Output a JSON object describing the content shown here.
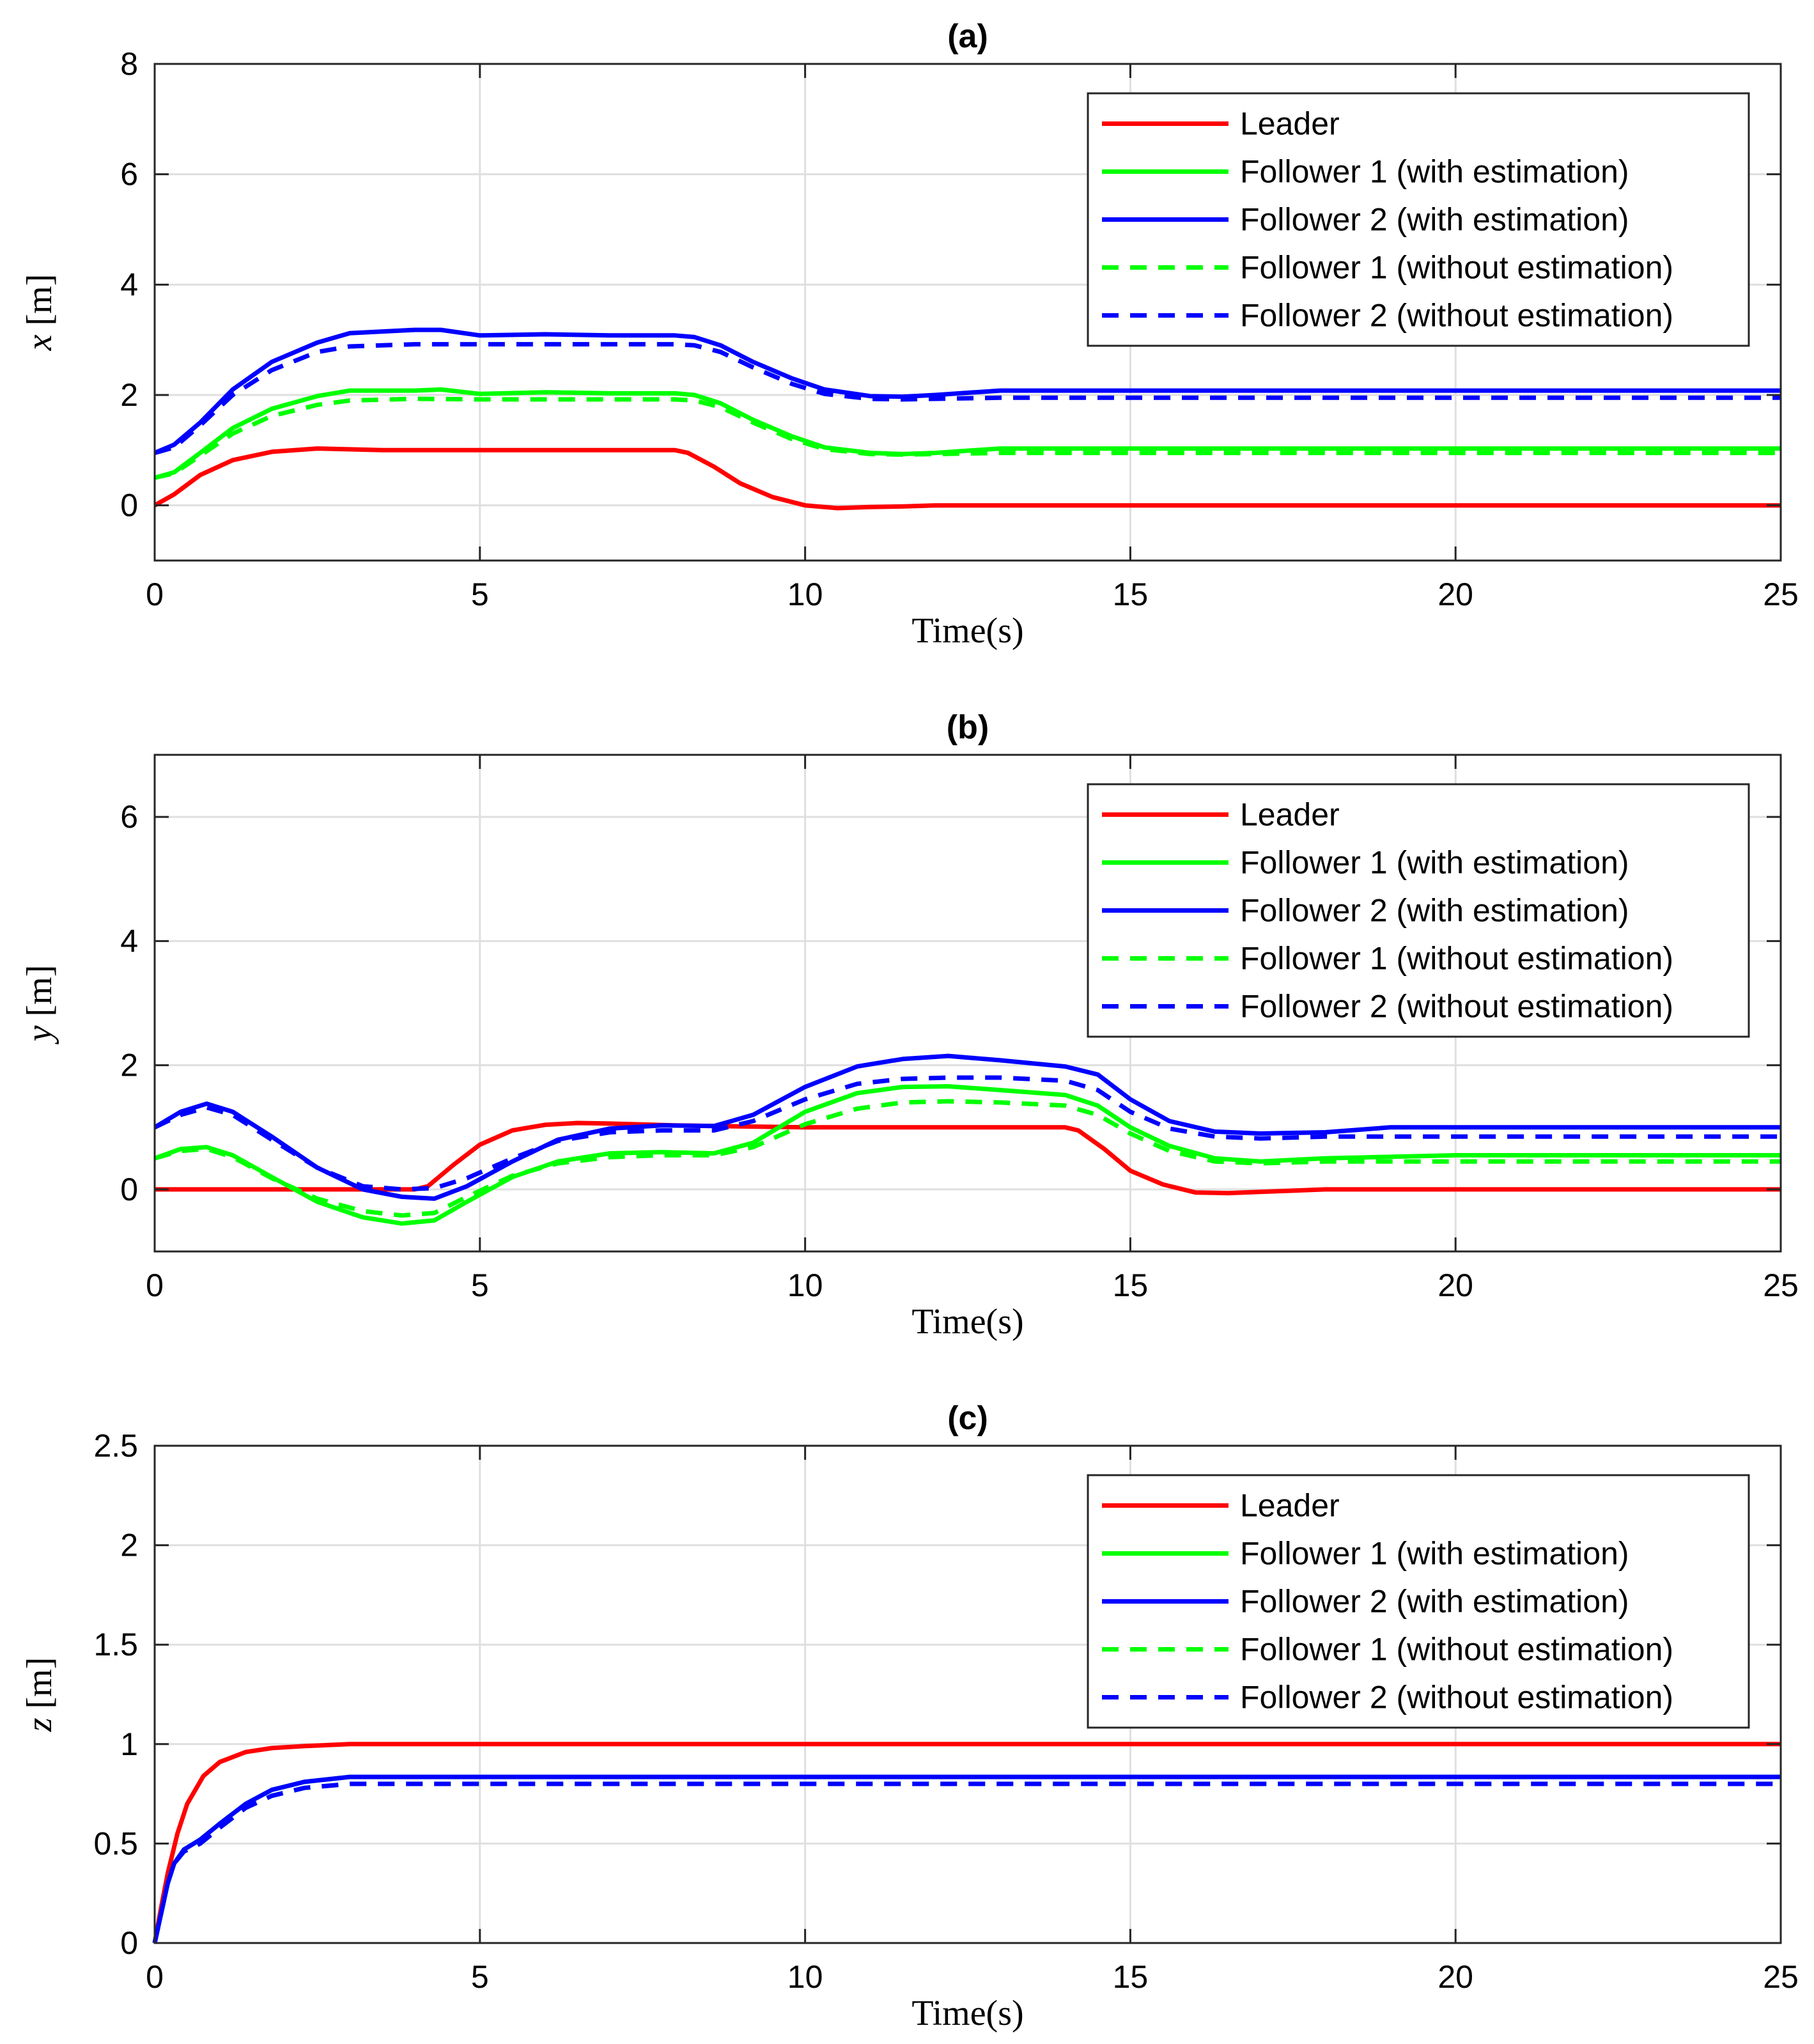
{
  "figure": {
    "xlabel": "Time(s)",
    "legend": {
      "placement": "top-right",
      "entries": [
        {
          "name": "Leader",
          "color": "#ff0000",
          "style": "solid"
        },
        {
          "name": "Follower 1 (with estimation)",
          "color": "#00ff00",
          "style": "solid"
        },
        {
          "name": "Follower 2 (with estimation)",
          "color": "#0000ff",
          "style": "solid"
        },
        {
          "name": "Follower 1 (without estimation)",
          "color": "#00ff00",
          "style": "dashed"
        },
        {
          "name": "Follower 2 (without estimation)",
          "color": "#0000ff",
          "style": "dashed"
        }
      ]
    }
  },
  "chart_data": [
    {
      "type": "line",
      "title": "(a)",
      "ylabel_var": "x",
      "ylabel_unit": "[m]",
      "xlabel": "Time(s)",
      "xlim": [
        0,
        25
      ],
      "ylim": [
        -1,
        8
      ],
      "xticks": [
        0,
        5,
        10,
        15,
        20,
        25
      ],
      "yticks": [
        0,
        2,
        4,
        6,
        8
      ],
      "grid": true,
      "series": [
        {
          "name": "Leader",
          "color": "#ff0000",
          "style": "solid",
          "x": [
            0,
            0.3,
            0.7,
            1.2,
            1.8,
            2.5,
            3.5,
            5,
            7,
            8,
            8.2,
            8.6,
            9,
            9.5,
            10,
            10.5,
            11,
            11.5,
            12,
            13,
            15,
            20,
            25
          ],
          "y": [
            0,
            0.2,
            0.55,
            0.82,
            0.97,
            1.03,
            1.0,
            1.0,
            1.0,
            1.0,
            0.95,
            0.7,
            0.4,
            0.15,
            0.0,
            -0.05,
            -0.03,
            -0.02,
            0.0,
            0.0,
            0.0,
            0.0,
            0.0
          ]
        },
        {
          "name": "Follower 1 (with estimation)",
          "color": "#00ff00",
          "style": "solid",
          "x": [
            0,
            0.3,
            0.7,
            1.2,
            1.8,
            2.5,
            3,
            4,
            4.4,
            5,
            6,
            7,
            8,
            8.3,
            8.7,
            9.2,
            9.8,
            10.3,
            11,
            11.5,
            12,
            13,
            15,
            20,
            25
          ],
          "y": [
            0.5,
            0.6,
            0.95,
            1.4,
            1.75,
            1.98,
            2.08,
            2.08,
            2.1,
            2.02,
            2.05,
            2.03,
            2.03,
            2.0,
            1.85,
            1.55,
            1.25,
            1.05,
            0.95,
            0.93,
            0.95,
            1.03,
            1.03,
            1.03,
            1.03
          ]
        },
        {
          "name": "Follower 2 (with estimation)",
          "color": "#0000ff",
          "style": "solid",
          "x": [
            0,
            0.3,
            0.7,
            1.2,
            1.8,
            2.5,
            3,
            4,
            4.4,
            5,
            6,
            7,
            8,
            8.3,
            8.7,
            9.2,
            9.8,
            10.3,
            11,
            11.5,
            12,
            13,
            15,
            20,
            25
          ],
          "y": [
            0.95,
            1.1,
            1.5,
            2.1,
            2.6,
            2.95,
            3.12,
            3.18,
            3.18,
            3.08,
            3.1,
            3.08,
            3.08,
            3.05,
            2.9,
            2.6,
            2.3,
            2.1,
            1.98,
            1.97,
            2.0,
            2.08,
            2.08,
            2.08,
            2.08
          ]
        },
        {
          "name": "Follower 1 (without estimation)",
          "color": "#00ff00",
          "style": "dashed",
          "x": [
            0,
            0.3,
            0.7,
            1.2,
            1.8,
            2.5,
            3,
            4,
            5,
            6,
            7,
            8,
            8.3,
            8.7,
            9.2,
            9.8,
            10.3,
            11,
            11.5,
            12,
            13,
            15,
            20,
            25
          ],
          "y": [
            0.5,
            0.58,
            0.9,
            1.3,
            1.62,
            1.82,
            1.9,
            1.93,
            1.92,
            1.92,
            1.92,
            1.92,
            1.9,
            1.78,
            1.5,
            1.2,
            1.02,
            0.93,
            0.92,
            0.93,
            0.95,
            0.95,
            0.95,
            0.95
          ]
        },
        {
          "name": "Follower 2 (without estimation)",
          "color": "#0000ff",
          "style": "dashed",
          "x": [
            0,
            0.3,
            0.7,
            1.2,
            1.8,
            2.5,
            3,
            4,
            5,
            6,
            7,
            8,
            8.3,
            8.7,
            9.2,
            9.8,
            10.3,
            11,
            11.5,
            12,
            13,
            15,
            20,
            25
          ],
          "y": [
            0.95,
            1.05,
            1.45,
            2.0,
            2.45,
            2.78,
            2.88,
            2.92,
            2.92,
            2.92,
            2.92,
            2.92,
            2.9,
            2.78,
            2.5,
            2.2,
            2.02,
            1.93,
            1.92,
            1.93,
            1.95,
            1.95,
            1.95,
            1.95
          ]
        }
      ]
    },
    {
      "type": "line",
      "title": "(b)",
      "ylabel_var": "y",
      "ylabel_unit": "[m]",
      "xlabel": "Time(s)",
      "xlim": [
        0,
        25
      ],
      "ylim": [
        -1,
        7
      ],
      "xticks": [
        0,
        5,
        10,
        15,
        20,
        25
      ],
      "yticks": [
        0,
        2,
        4,
        6
      ],
      "grid": true,
      "series": [
        {
          "name": "Leader",
          "color": "#ff0000",
          "style": "solid",
          "x": [
            0,
            2,
            4,
            4.2,
            4.6,
            5,
            5.5,
            6,
            6.5,
            7,
            8,
            10,
            12,
            14,
            14.2,
            14.6,
            15,
            15.5,
            16,
            16.5,
            17,
            18,
            20,
            25
          ],
          "y": [
            0,
            0,
            0,
            0.05,
            0.4,
            0.72,
            0.95,
            1.04,
            1.07,
            1.06,
            1.03,
            1.0,
            1.0,
            1.0,
            0.95,
            0.65,
            0.3,
            0.08,
            -0.05,
            -0.06,
            -0.04,
            0.0,
            0.0,
            0.0
          ]
        },
        {
          "name": "Follower 1 (with estimation)",
          "color": "#00ff00",
          "style": "solid",
          "x": [
            0,
            0.4,
            0.8,
            1.2,
            1.8,
            2.5,
            3.2,
            3.8,
            4.3,
            4.8,
            5.5,
            6.2,
            7,
            7.8,
            8.6,
            9.2,
            10,
            10.8,
            11.5,
            12.2,
            13,
            14,
            14.5,
            15,
            15.6,
            16.3,
            17,
            18,
            20,
            25
          ],
          "y": [
            0.5,
            0.65,
            0.68,
            0.55,
            0.2,
            -0.2,
            -0.45,
            -0.55,
            -0.5,
            -0.2,
            0.2,
            0.45,
            0.58,
            0.6,
            0.58,
            0.75,
            1.25,
            1.55,
            1.65,
            1.66,
            1.6,
            1.52,
            1.35,
            1.0,
            0.7,
            0.5,
            0.45,
            0.5,
            0.55,
            0.55
          ]
        },
        {
          "name": "Follower 2 (with estimation)",
          "color": "#0000ff",
          "style": "solid",
          "x": [
            0,
            0.4,
            0.8,
            1.2,
            1.8,
            2.5,
            3.2,
            3.8,
            4.3,
            4.8,
            5.5,
            6.2,
            7,
            7.8,
            8.6,
            9.2,
            10,
            10.8,
            11.5,
            12.2,
            13,
            14,
            14.5,
            15,
            15.6,
            16.3,
            17,
            18,
            19,
            20,
            25
          ],
          "y": [
            1.0,
            1.25,
            1.38,
            1.25,
            0.85,
            0.35,
            0.0,
            -0.12,
            -0.15,
            0.05,
            0.45,
            0.8,
            0.98,
            1.03,
            1.02,
            1.2,
            1.65,
            1.98,
            2.1,
            2.15,
            2.08,
            1.98,
            1.85,
            1.45,
            1.1,
            0.93,
            0.9,
            0.92,
            1.0,
            1.0,
            1.0
          ]
        },
        {
          "name": "Follower 1 (without estimation)",
          "color": "#00ff00",
          "style": "dashed",
          "x": [
            0,
            0.4,
            0.8,
            1.2,
            1.8,
            2.5,
            3.2,
            3.8,
            4.3,
            4.8,
            5.5,
            6.2,
            7,
            7.8,
            8.6,
            9.2,
            10,
            10.8,
            11.5,
            12.2,
            13,
            14,
            14.5,
            15,
            15.6,
            16.3,
            17,
            18,
            20,
            25
          ],
          "y": [
            0.5,
            0.62,
            0.65,
            0.52,
            0.18,
            -0.15,
            -0.35,
            -0.42,
            -0.38,
            -0.12,
            0.22,
            0.42,
            0.52,
            0.55,
            0.55,
            0.68,
            1.05,
            1.3,
            1.4,
            1.42,
            1.4,
            1.35,
            1.2,
            0.9,
            0.62,
            0.45,
            0.42,
            0.45,
            0.45,
            0.45
          ]
        },
        {
          "name": "Follower 2 (without estimation)",
          "color": "#0000ff",
          "style": "dashed",
          "x": [
            0,
            0.4,
            0.8,
            1.2,
            1.8,
            2.5,
            3.2,
            3.8,
            4.3,
            4.8,
            5.5,
            6.2,
            7,
            7.8,
            8.6,
            9.2,
            10,
            10.8,
            11.5,
            12.2,
            13,
            14,
            14.5,
            15,
            15.6,
            16.3,
            17,
            18,
            20,
            25
          ],
          "y": [
            1.0,
            1.2,
            1.32,
            1.2,
            0.8,
            0.35,
            0.05,
            0.0,
            0.02,
            0.18,
            0.5,
            0.78,
            0.92,
            0.95,
            0.95,
            1.1,
            1.45,
            1.7,
            1.78,
            1.8,
            1.8,
            1.75,
            1.6,
            1.25,
            0.98,
            0.85,
            0.82,
            0.85,
            0.85,
            0.85
          ]
        }
      ]
    },
    {
      "type": "line",
      "title": "(c)",
      "ylabel_var": "z",
      "ylabel_unit": "[m]",
      "xlabel": "Time(s)",
      "xlim": [
        0,
        25
      ],
      "ylim": [
        0,
        2.5
      ],
      "xticks": [
        0,
        5,
        10,
        15,
        20,
        25
      ],
      "yticks": [
        0,
        0.5,
        1,
        1.5,
        2,
        2.5
      ],
      "grid": true,
      "series": [
        {
          "name": "Leader",
          "color": "#ff0000",
          "style": "solid",
          "x": [
            0,
            0.1,
            0.2,
            0.35,
            0.5,
            0.75,
            1.0,
            1.4,
            1.8,
            2.3,
            3,
            4,
            25
          ],
          "y": [
            0,
            0.18,
            0.35,
            0.55,
            0.7,
            0.84,
            0.91,
            0.96,
            0.98,
            0.99,
            1.0,
            1.0,
            1.0
          ]
        },
        {
          "name": "Follower 1 (with estimation)",
          "color": "#00ff00",
          "style": "solid",
          "x": [
            0,
            0.1,
            0.2,
            0.3,
            0.45,
            0.7,
            1.0,
            1.4,
            1.8,
            2.3,
            3,
            4,
            25
          ],
          "y": [
            0,
            0.15,
            0.3,
            0.4,
            0.47,
            0.52,
            0.6,
            0.7,
            0.77,
            0.81,
            0.835,
            0.835,
            0.835
          ]
        },
        {
          "name": "Follower 2 (with estimation)",
          "color": "#0000ff",
          "style": "solid",
          "x": [
            0,
            0.1,
            0.2,
            0.3,
            0.45,
            0.7,
            1.0,
            1.4,
            1.8,
            2.3,
            3,
            4,
            25
          ],
          "y": [
            0,
            0.15,
            0.3,
            0.4,
            0.47,
            0.52,
            0.6,
            0.7,
            0.77,
            0.81,
            0.835,
            0.835,
            0.835
          ]
        },
        {
          "name": "Follower 1 (without estimation)",
          "color": "#00ff00",
          "style": "dashed",
          "x": [
            0,
            0.1,
            0.2,
            0.3,
            0.45,
            0.7,
            1.0,
            1.4,
            1.8,
            2.3,
            3,
            4,
            25
          ],
          "y": [
            0,
            0.15,
            0.3,
            0.4,
            0.46,
            0.5,
            0.58,
            0.68,
            0.74,
            0.78,
            0.8,
            0.8,
            0.8
          ]
        },
        {
          "name": "Follower 2 (without estimation)",
          "color": "#0000ff",
          "style": "dashed",
          "x": [
            0,
            0.1,
            0.2,
            0.3,
            0.45,
            0.7,
            1.0,
            1.4,
            1.8,
            2.3,
            3,
            4,
            25
          ],
          "y": [
            0,
            0.15,
            0.3,
            0.4,
            0.46,
            0.5,
            0.58,
            0.68,
            0.74,
            0.78,
            0.8,
            0.8,
            0.8
          ]
        }
      ]
    }
  ]
}
